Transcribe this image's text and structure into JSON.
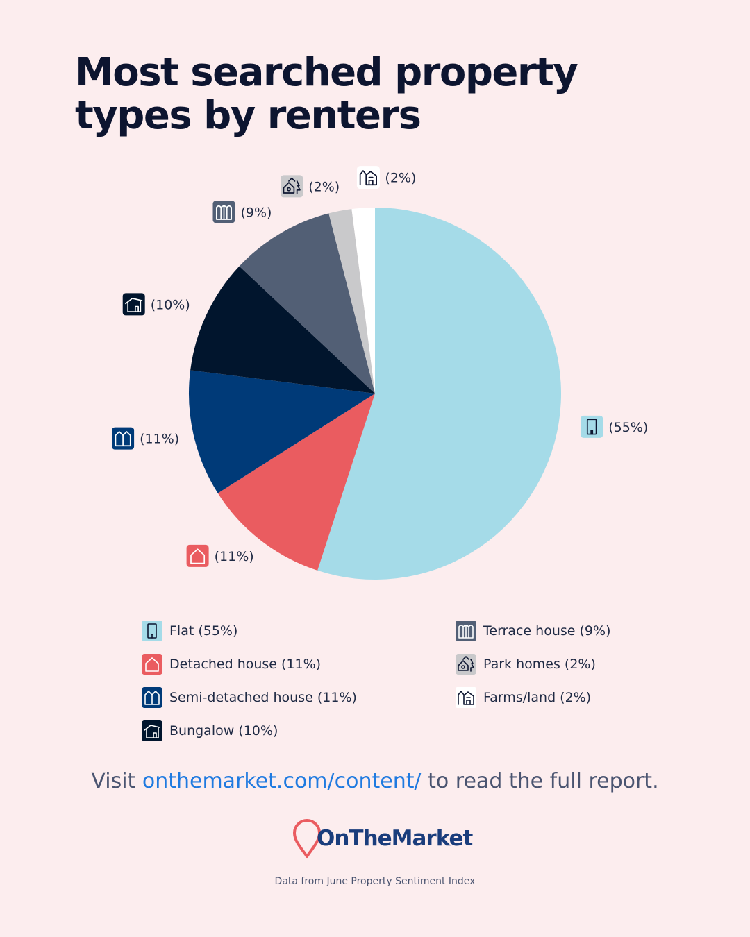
{
  "chart_data": {
    "type": "pie",
    "title": "Most searched property types by renters",
    "categories": [
      "Flat",
      "Detached house",
      "Semi-detached house",
      "Bungalow",
      "Terrace house",
      "Park homes",
      "Farms/land"
    ],
    "values": [
      55,
      11,
      11,
      10,
      9,
      2,
      2
    ],
    "unit": "%",
    "slice_labels": [
      "(55%)",
      "(11%)",
      "(11%)",
      "(10%)",
      "(9%)",
      "(2%)",
      "(2%)"
    ],
    "legend_labels": [
      "Flat (55%)",
      "Detached house (11%)",
      "Semi-detached house (11%)",
      "Bungalow (10%)",
      "Terrace house (9%)",
      "Park homes (2%)",
      "Farms/land (2%)"
    ],
    "colors": [
      "#a5dbe8",
      "#ea5c60",
      "#003a78",
      "#01152d",
      "#525f75",
      "#c9c9cb",
      "#ffffff"
    ],
    "icons": [
      "flat-icon",
      "detached-house-icon",
      "semi-detached-house-icon",
      "bungalow-icon",
      "terrace-house-icon",
      "park-homes-icon",
      "farms-land-icon"
    ],
    "start_angle_deg": 0,
    "direction": "clockwise",
    "legend_placement": "bottom"
  },
  "footer": {
    "visit_prefix": "Visit ",
    "visit_link": "onthemarket.com/content/",
    "visit_suffix": " to read the full report.",
    "brand": "OnTheMarket",
    "source_note": "Data from June Property Sentiment Index"
  },
  "brand_colors": {
    "navy": "#1a3d7c",
    "coral": "#ea5c60",
    "link": "#1f7ae0"
  }
}
